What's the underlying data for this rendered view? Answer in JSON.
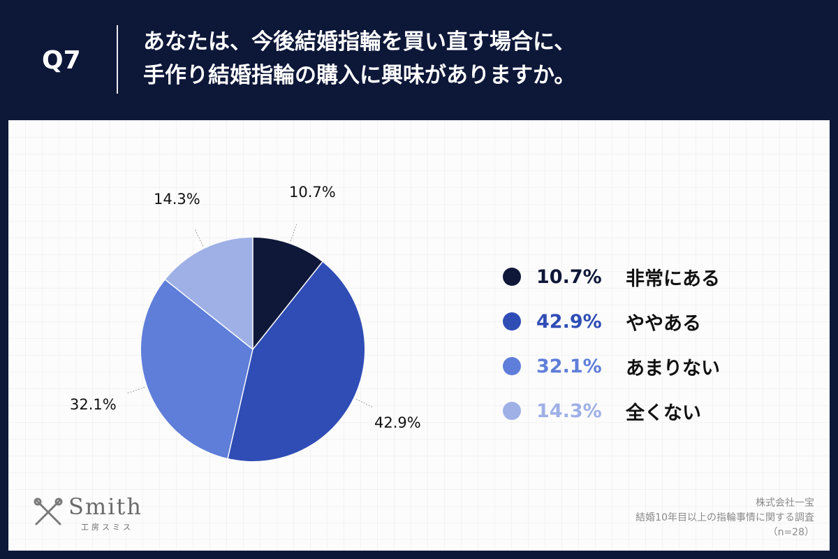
{
  "header": {
    "question_label": "Q7",
    "question_line1": "あなたは、今後結婚指輪を買い直す場合に、",
    "question_line2": "手作り結婚指輪の購入に興味がありますか。"
  },
  "chart_data": {
    "type": "pie",
    "title": "",
    "start_angle_deg": 0,
    "direction": "clockwise",
    "slices": [
      {
        "label": "非常にある",
        "value": 10.7,
        "display": "10.7%",
        "color": "#0f1838"
      },
      {
        "label": "ややある",
        "value": 42.9,
        "display": "42.9%",
        "color": "#2f4db5"
      },
      {
        "label": "あまりない",
        "value": 32.1,
        "display": "32.1%",
        "color": "#5f7ed9"
      },
      {
        "label": "全くない",
        "value": 14.3,
        "display": "14.3%",
        "color": "#9fb0e6"
      }
    ],
    "legend_position": "right"
  },
  "legend_text_colors": [
    "#0f1838",
    "#2f4db5",
    "#5f7ed9",
    "#9fb0e6"
  ],
  "logo": {
    "word": "Smith",
    "subtitle": "工房スミス",
    "icon": "crossed-tools-icon"
  },
  "source": {
    "company": "株式会社一宝",
    "survey": "結婚10年目以上の指輪事情に関する調査",
    "sample": "（n=28）"
  }
}
